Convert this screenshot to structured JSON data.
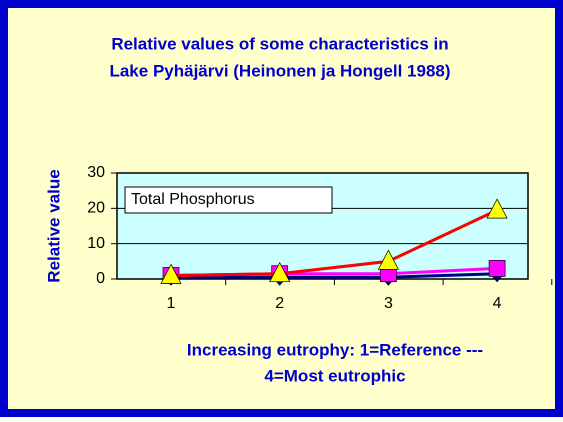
{
  "chart_data": {
    "type": "line",
    "title": [
      "Relative values of some characteristics in",
      "Lake Pyhäjärvi (Heinonen ja Hongell 1988)"
    ],
    "ylabel": "Relative value",
    "xlabel": [
      "Increasing eutrophy: 1=Reference ---",
      "4=Most eutrophic"
    ],
    "annotation": "Total Phosphorus",
    "categories": [
      "1",
      "2",
      "3",
      "4"
    ],
    "series": [
      {
        "color": "#000080",
        "marker": "diamond",
        "marker_color": "#000080",
        "values": [
          0.5,
          0.5,
          0.5,
          1.5
        ]
      },
      {
        "color": "#ff00ff",
        "marker": "square",
        "marker_color": "#ff00ff",
        "values": [
          1,
          1.5,
          1.5,
          3
        ]
      },
      {
        "color": "#ff0000",
        "marker": "triangle",
        "marker_color": "#ffff00",
        "values": [
          1,
          1.5,
          5,
          19.5
        ]
      }
    ],
    "ylim": [
      0,
      30
    ],
    "yticks": [
      0,
      10,
      20,
      30
    ],
    "grid": true
  }
}
